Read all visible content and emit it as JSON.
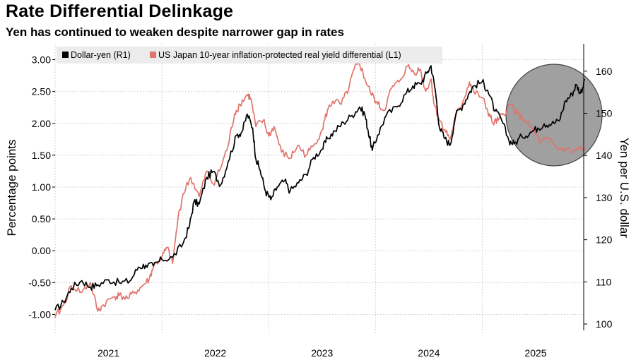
{
  "header": {
    "title": "Rate Differential Delinkage",
    "subtitle": "Yen has continued to weaken despite narrower gap in rates"
  },
  "chart_data": {
    "type": "line",
    "title": "Rate Differential Delinkage",
    "subtitle": "Yen has continued to weaken despite narrower gap in rates",
    "ylabel_left": "Percentage points",
    "ylabel_right": "Yen per U.S. dollar",
    "y_left_ticks": [
      "3.00",
      "2.50",
      "2.00",
      "1.50",
      "1.00",
      "0.50",
      "0.00",
      "-0.50",
      "-1.00"
    ],
    "y_right_ticks": [
      "160",
      "150",
      "140",
      "130",
      "120",
      "110",
      "100"
    ],
    "x_ticks": [
      "2021",
      "2022",
      "2023",
      "2024",
      "2025"
    ],
    "ylim_left": [
      -1.25,
      3.25
    ],
    "ylim_right": [
      98.5,
      166.5
    ],
    "xlim": [
      2021.0,
      2025.95
    ],
    "grid": true,
    "legend_position": "top-left",
    "annotation": "shaded circle highlighting 2025",
    "series": [
      {
        "name": "Dollar-yen (R1)",
        "axis": "right",
        "color": "#000000",
        "points": [
          [
            2021.0,
            103.3
          ],
          [
            2021.08,
            105.2
          ],
          [
            2021.15,
            108.5
          ],
          [
            2021.25,
            110.3
          ],
          [
            2021.33,
            108.8
          ],
          [
            2021.4,
            109.3
          ],
          [
            2021.5,
            110.5
          ],
          [
            2021.6,
            109.8
          ],
          [
            2021.7,
            110.2
          ],
          [
            2021.78,
            113.5
          ],
          [
            2021.85,
            114.0
          ],
          [
            2021.92,
            113.8
          ],
          [
            2022.0,
            115.3
          ],
          [
            2022.1,
            115.8
          ],
          [
            2022.2,
            119.2
          ],
          [
            2022.26,
            123.5
          ],
          [
            2022.3,
            129.0
          ],
          [
            2022.35,
            128.5
          ],
          [
            2022.42,
            134.8
          ],
          [
            2022.48,
            136.2
          ],
          [
            2022.55,
            133.0
          ],
          [
            2022.62,
            138.5
          ],
          [
            2022.7,
            144.8
          ],
          [
            2022.75,
            145.6
          ],
          [
            2022.8,
            149.8
          ],
          [
            2022.85,
            146.5
          ],
          [
            2022.88,
            139.2
          ],
          [
            2022.92,
            136.5
          ],
          [
            2022.97,
            131.5
          ],
          [
            2023.02,
            129.5
          ],
          [
            2023.08,
            132.5
          ],
          [
            2023.15,
            134.0
          ],
          [
            2023.2,
            131.5
          ],
          [
            2023.28,
            133.5
          ],
          [
            2023.35,
            135.5
          ],
          [
            2023.42,
            139.5
          ],
          [
            2023.5,
            141.5
          ],
          [
            2023.55,
            144.0
          ],
          [
            2023.62,
            145.8
          ],
          [
            2023.7,
            147.8
          ],
          [
            2023.78,
            149.5
          ],
          [
            2023.85,
            151.5
          ],
          [
            2023.9,
            149.8
          ],
          [
            2023.93,
            146.0
          ],
          [
            2023.97,
            141.2
          ],
          [
            2024.02,
            144.8
          ],
          [
            2024.1,
            149.5
          ],
          [
            2024.2,
            151.5
          ],
          [
            2024.28,
            154.5
          ],
          [
            2024.35,
            156.5
          ],
          [
            2024.42,
            157.0
          ],
          [
            2024.48,
            159.5
          ],
          [
            2024.52,
            161.3
          ],
          [
            2024.56,
            155.5
          ],
          [
            2024.6,
            146.5
          ],
          [
            2024.65,
            144.0
          ],
          [
            2024.7,
            142.5
          ],
          [
            2024.75,
            149.5
          ],
          [
            2024.82,
            152.0
          ],
          [
            2024.87,
            154.5
          ],
          [
            2024.92,
            156.5
          ],
          [
            2025.0,
            157.5
          ],
          [
            2025.05,
            155.5
          ],
          [
            2025.12,
            150.5
          ],
          [
            2025.18,
            148.5
          ],
          [
            2025.25,
            143.5
          ],
          [
            2025.3,
            142.8
          ],
          [
            2025.37,
            144.5
          ],
          [
            2025.45,
            145.5
          ],
          [
            2025.52,
            146.5
          ],
          [
            2025.58,
            147.5
          ],
          [
            2025.65,
            147.5
          ],
          [
            2025.72,
            148.2
          ],
          [
            2025.78,
            153.0
          ],
          [
            2025.84,
            154.5
          ],
          [
            2025.88,
            156.8
          ],
          [
            2025.92,
            154.8
          ],
          [
            2025.96,
            157.8
          ]
        ]
      },
      {
        "name": "US Japan 10-year inflation-protected real yield differential (L1)",
        "axis": "left",
        "color": "#e0746c",
        "points": [
          [
            2021.0,
            -1.05
          ],
          [
            2021.08,
            -0.85
          ],
          [
            2021.15,
            -0.55
          ],
          [
            2021.25,
            -0.65
          ],
          [
            2021.33,
            -0.5
          ],
          [
            2021.4,
            -0.95
          ],
          [
            2021.45,
            -0.85
          ],
          [
            2021.55,
            -0.72
          ],
          [
            2021.6,
            -0.7
          ],
          [
            2021.68,
            -0.75
          ],
          [
            2021.75,
            -0.65
          ],
          [
            2021.82,
            -0.55
          ],
          [
            2021.88,
            -0.45
          ],
          [
            2021.92,
            -0.25
          ],
          [
            2022.0,
            -0.1
          ],
          [
            2022.05,
            0.05
          ],
          [
            2022.1,
            -0.2
          ],
          [
            2022.15,
            0.5
          ],
          [
            2022.2,
            0.9
          ],
          [
            2022.27,
            1.15
          ],
          [
            2022.35,
            0.85
          ],
          [
            2022.42,
            1.25
          ],
          [
            2022.48,
            1.05
          ],
          [
            2022.55,
            1.3
          ],
          [
            2022.62,
            1.65
          ],
          [
            2022.68,
            2.15
          ],
          [
            2022.73,
            2.3
          ],
          [
            2022.8,
            2.45
          ],
          [
            2022.83,
            2.4
          ],
          [
            2022.88,
            1.95
          ],
          [
            2022.95,
            2.05
          ],
          [
            2023.0,
            1.8
          ],
          [
            2023.05,
            1.95
          ],
          [
            2023.12,
            1.55
          ],
          [
            2023.2,
            1.45
          ],
          [
            2023.27,
            1.65
          ],
          [
            2023.35,
            1.5
          ],
          [
            2023.42,
            1.65
          ],
          [
            2023.5,
            1.9
          ],
          [
            2023.55,
            2.2
          ],
          [
            2023.6,
            2.35
          ],
          [
            2023.68,
            2.3
          ],
          [
            2023.75,
            2.55
          ],
          [
            2023.8,
            2.85
          ],
          [
            2023.85,
            2.95
          ],
          [
            2023.9,
            2.7
          ],
          [
            2023.95,
            2.5
          ],
          [
            2024.02,
            2.3
          ],
          [
            2024.08,
            2.2
          ],
          [
            2024.15,
            2.55
          ],
          [
            2024.22,
            2.65
          ],
          [
            2024.3,
            2.9
          ],
          [
            2024.36,
            2.8
          ],
          [
            2024.42,
            2.85
          ],
          [
            2024.47,
            2.5
          ],
          [
            2024.52,
            2.7
          ],
          [
            2024.55,
            2.3
          ],
          [
            2024.6,
            2.05
          ],
          [
            2024.65,
            1.9
          ],
          [
            2024.7,
            1.75
          ],
          [
            2024.75,
            2.1
          ],
          [
            2024.82,
            2.35
          ],
          [
            2024.88,
            2.65
          ],
          [
            2024.92,
            2.5
          ],
          [
            2025.0,
            2.4
          ],
          [
            2025.05,
            2.2
          ],
          [
            2025.1,
            2.0
          ],
          [
            2025.15,
            2.05
          ],
          [
            2025.2,
            2.15
          ],
          [
            2025.27,
            2.3
          ],
          [
            2025.33,
            2.15
          ],
          [
            2025.4,
            2.05
          ],
          [
            2025.47,
            1.9
          ],
          [
            2025.55,
            1.7
          ],
          [
            2025.62,
            1.75
          ],
          [
            2025.7,
            1.6
          ],
          [
            2025.78,
            1.6
          ],
          [
            2025.85,
            1.55
          ],
          [
            2025.9,
            1.6
          ],
          [
            2025.96,
            1.58
          ]
        ]
      }
    ]
  }
}
